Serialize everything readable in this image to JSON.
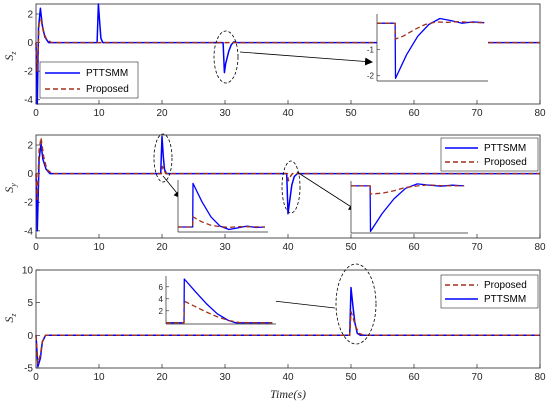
{
  "chart_data": [
    {
      "type": "line",
      "ylabel": "S_z",
      "ylabel_main": "S",
      "ylabel_sub": "z",
      "xlim": [
        0,
        80
      ],
      "ylim": [
        -4.3,
        2.7
      ],
      "xticks": [
        0,
        10,
        20,
        30,
        40,
        50,
        60,
        70,
        80
      ],
      "yticks": [
        2,
        0,
        -2,
        -4
      ],
      "ytick_labels": [
        "2",
        "0",
        "-2",
        "-4"
      ],
      "legend": {
        "position": "bottom-left",
        "entries": [
          "PTTSMM",
          "Proposed"
        ]
      },
      "series": [
        {
          "name": "PTTSMM",
          "color": "#0000ff",
          "style": "solid",
          "x": [
            0,
            0.2,
            0.4,
            0.7,
            1.0,
            1.4,
            2,
            9.7,
            9.9,
            10.1,
            10.3,
            10.6,
            29.7,
            29.9,
            30.1,
            30.6,
            31.0,
            31.4,
            32,
            80
          ],
          "y": [
            0,
            -4.3,
            1.0,
            2.4,
            1.2,
            0.4,
            0,
            0,
            2.7,
            1.5,
            0.3,
            0,
            0,
            -2.1,
            -1.5,
            -0.6,
            -0.15,
            0.05,
            0,
            0
          ]
        },
        {
          "name": "Proposed",
          "color": "#a0301c",
          "style": "dashed",
          "x": [
            0,
            0.2,
            0.5,
            0.8,
            1.2,
            1.7,
            2.5,
            80
          ],
          "y": [
            0,
            -2.0,
            1.4,
            1.6,
            0.7,
            0.2,
            0,
            0
          ]
        }
      ],
      "inset": {
        "xlim": [
          29.5,
          32.5
        ],
        "ylim": [
          -2.2,
          0.35
        ],
        "yticks": [
          -1,
          -2
        ],
        "ytick_labels": [
          "-1",
          "-2"
        ],
        "series": [
          {
            "name": "PTTSMM",
            "x": [
              29.5,
              29.99,
              30.0,
              30.3,
              30.6,
              30.9,
              31.2,
              31.5,
              31.8,
              32.1,
              32.4
            ],
            "y": [
              0,
              0,
              -2.1,
              -1.2,
              -0.5,
              -0.05,
              0.18,
              0.1,
              0.0,
              0.05,
              0.02
            ]
          },
          {
            "name": "Proposed",
            "x": [
              29.5,
              29.99,
              30.0,
              30.2,
              30.5,
              30.8,
              31.1,
              31.4,
              31.7,
              32.0,
              32.4
            ],
            "y": [
              0,
              0,
              -0.6,
              -0.5,
              -0.25,
              -0.05,
              0.05,
              0.03,
              0.06,
              0.03,
              0.02
            ]
          }
        ]
      }
    },
    {
      "type": "line",
      "ylabel": "S_y",
      "ylabel_main": "S",
      "ylabel_sub": "y",
      "xlim": [
        0,
        80
      ],
      "ylim": [
        -4.5,
        2.7
      ],
      "xticks": [
        0,
        10,
        20,
        30,
        40,
        50,
        60,
        70,
        80
      ],
      "yticks": [
        2,
        0,
        -2,
        -4
      ],
      "ytick_labels": [
        "2",
        "0",
        "-2",
        "-4"
      ],
      "legend": {
        "position": "top-right",
        "entries": [
          "PTTSMM",
          "Proposed"
        ]
      },
      "series": [
        {
          "name": "PTTSMM",
          "color": "#0000ff",
          "style": "solid",
          "x": [
            0,
            0.2,
            0.5,
            0.8,
            1.1,
            1.6,
            2.2,
            19.8,
            20.0,
            20.2,
            20.4,
            20.7,
            39.8,
            40.0,
            40.3,
            40.6,
            41.0,
            41.5,
            80
          ],
          "y": [
            0,
            -4.0,
            1.0,
            2.1,
            1.0,
            0.3,
            0,
            0,
            2.6,
            1.2,
            0.3,
            0,
            0,
            -2.8,
            -1.8,
            -0.8,
            -0.2,
            0,
            0
          ]
        },
        {
          "name": "Proposed",
          "color": "#a0301c",
          "style": "dashed",
          "x": [
            0,
            0.2,
            0.5,
            0.8,
            1.2,
            1.7,
            2.5,
            19.9,
            20.05,
            20.3,
            20.6,
            39.9,
            40.05,
            40.3,
            40.7,
            80
          ],
          "y": [
            0,
            -1.8,
            1.6,
            2.5,
            1.2,
            0.3,
            0,
            0,
            0.5,
            0.25,
            0,
            0,
            -0.5,
            -0.25,
            0,
            0
          ]
        }
      ],
      "inset_left": {
        "xlim": [
          19.5,
          22.5
        ],
        "ylim": [
          -0.3,
          2.8
        ],
        "series": [
          {
            "name": "PTTSMM",
            "x": [
              19.5,
              19.99,
              20.0,
              20.3,
              20.6,
              20.9,
              21.2,
              21.5,
              21.8,
              22.1,
              22.4
            ],
            "y": [
              0,
              0,
              2.6,
              1.5,
              0.6,
              0.05,
              -0.15,
              -0.05,
              0.05,
              -0.03,
              0.0
            ]
          },
          {
            "name": "Proposed",
            "x": [
              19.5,
              19.99,
              20.0,
              20.3,
              20.6,
              20.9,
              21.2,
              21.5,
              22.4
            ],
            "y": [
              0,
              0,
              0.6,
              0.3,
              0.1,
              0.02,
              -0.03,
              0.02,
              0.0
            ]
          }
        ]
      },
      "inset_right": {
        "xlim": [
          39.5,
          42.5
        ],
        "ylim": [
          -2.9,
          0.3
        ],
        "series": [
          {
            "name": "PTTSMM",
            "x": [
              39.5,
              39.99,
              40.0,
              40.3,
              40.6,
              40.9,
              41.2,
              41.5,
              41.8,
              42.1,
              42.4
            ],
            "y": [
              0,
              0,
              -2.8,
              -1.7,
              -0.8,
              -0.15,
              0.12,
              0.05,
              -0.02,
              0.04,
              0.0
            ]
          },
          {
            "name": "Proposed",
            "x": [
              39.5,
              39.99,
              40.0,
              40.3,
              40.6,
              40.9,
              41.2,
              41.5,
              41.8,
              42.4
            ],
            "y": [
              0,
              0,
              -0.5,
              -0.45,
              -0.3,
              -0.1,
              0.0,
              0.06,
              0.02,
              0.0
            ]
          }
        ]
      }
    },
    {
      "type": "line",
      "ylabel": "S_z",
      "ylabel_main": "S",
      "ylabel_sub": "z",
      "xlabel": "Time(s)",
      "xlim": [
        0,
        80
      ],
      "ylim": [
        -5,
        10
      ],
      "xticks": [
        0,
        10,
        20,
        30,
        40,
        50,
        60,
        70,
        80
      ],
      "yticks": [
        10,
        5,
        0,
        -5
      ],
      "ytick_labels": [
        "10",
        "5",
        "0",
        "-5"
      ],
      "legend": {
        "position": "top-right",
        "entries": [
          "Proposed",
          "PTTSMM"
        ]
      },
      "series": [
        {
          "name": "PTTSMM",
          "color": "#0000ff",
          "style": "solid",
          "x": [
            0,
            0.3,
            0.7,
            1.0,
            1.5,
            2,
            49.8,
            50.0,
            50.3,
            50.6,
            51.0,
            51.5,
            80
          ],
          "y": [
            0,
            -4.8,
            -3.5,
            -1.0,
            0,
            0,
            0,
            7.3,
            4.5,
            2.0,
            0.3,
            0,
            0
          ]
        },
        {
          "name": "Proposed",
          "color": "#a0301c",
          "style": "dashed",
          "x": [
            0,
            0.3,
            0.7,
            1.0,
            1.5,
            2,
            49.8,
            50.0,
            50.4,
            50.8,
            51.3,
            52,
            80
          ],
          "y": [
            0,
            -4.3,
            -3.0,
            -1.0,
            0,
            0,
            0,
            3.6,
            2.5,
            1.2,
            0.3,
            0,
            0
          ]
        }
      ],
      "inset": {
        "xlim": [
          49.5,
          52.5
        ],
        "ylim": [
          -0.2,
          7.8
        ],
        "yticks": [
          6,
          4,
          2
        ],
        "ytick_labels": [
          "6",
          "4",
          "2"
        ],
        "series": [
          {
            "name": "PTTSMM",
            "x": [
              49.5,
              49.99,
              50.0,
              50.3,
              50.6,
              50.9,
              51.2,
              51.4,
              52.4
            ],
            "y": [
              0,
              0,
              7.3,
              5.2,
              3.2,
              1.5,
              0.4,
              0,
              0
            ]
          },
          {
            "name": "Proposed",
            "x": [
              49.5,
              49.99,
              50.0,
              50.3,
              50.6,
              50.9,
              51.2,
              51.5,
              52.4
            ],
            "y": [
              0,
              0,
              3.6,
              2.7,
              1.8,
              1.0,
              0.4,
              0.05,
              0
            ]
          }
        ]
      }
    }
  ]
}
